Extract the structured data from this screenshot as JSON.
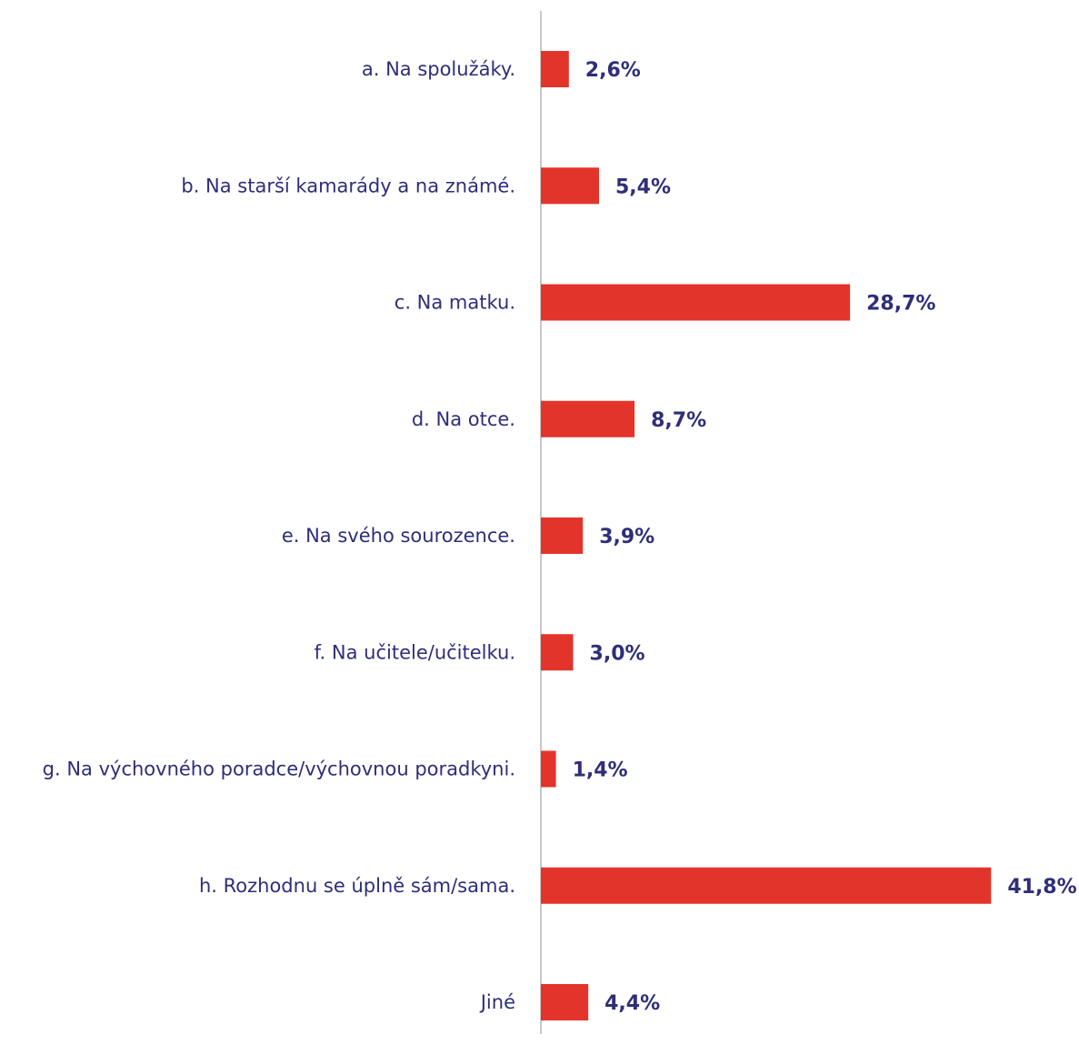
{
  "chart_data": {
    "type": "bar",
    "orientation": "horizontal",
    "categories": [
      "a. Na spolužáky.",
      "b. Na starší kamarády a na známé.",
      "c. Na matku.",
      "d. Na otce.",
      "e. Na svého sourozence.",
      "f. Na učitele/učitelku.",
      "g. Na výchovného poradce/výchovnou poradkyni.",
      "h. Rozhodnu se úplně sám/sama.",
      "Jiné"
    ],
    "values": [
      2.6,
      5.4,
      28.7,
      8.7,
      3.9,
      3.0,
      1.4,
      41.8,
      4.4
    ],
    "value_labels": [
      "2,6%",
      "5,4%",
      "28,7%",
      "8,7%",
      "3,9%",
      "3,0%",
      "1,4%",
      "41,8%",
      "4,4%"
    ],
    "bar_color": "#e3342b",
    "axis_color": "#c8c8c8",
    "text_color": "#2e2e7a",
    "grid": false,
    "legend": false
  }
}
